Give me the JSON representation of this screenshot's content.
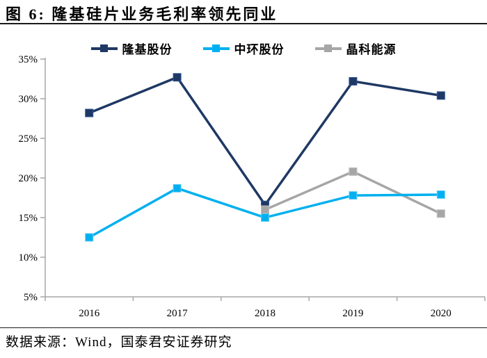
{
  "header": {
    "title": "图 6:  隆基硅片业务毛利率领先同业"
  },
  "footer": {
    "source": "数据来源：Wind，国泰君安证券研究"
  },
  "colors": {
    "axis": "#a6a6a6",
    "text": "#000000",
    "rule": "#1a1a1a"
  },
  "chart_data": {
    "type": "line",
    "title": "隆基硅片业务毛利率领先同业",
    "categories": [
      "2016",
      "2017",
      "2018",
      "2019",
      "2020"
    ],
    "series": [
      {
        "name": "隆基股份",
        "color": "#1f3864",
        "marker_stroke": "#2f5597",
        "values": [
          28.2,
          32.7,
          16.6,
          32.2,
          30.4
        ]
      },
      {
        "name": "中环股份",
        "color": "#00b0f0",
        "marker_stroke": "#66ccf5",
        "values": [
          12.5,
          18.7,
          15.0,
          17.8,
          17.9
        ]
      },
      {
        "name": "晶科能源",
        "color": "#a6a6a6",
        "marker_stroke": "#bfbfbf",
        "values": [
          null,
          null,
          16.0,
          20.8,
          15.5
        ]
      }
    ],
    "draw_order": [
      0,
      2,
      1
    ],
    "marker": "square",
    "grid": false,
    "legend_position": "top",
    "ylim": [
      5,
      35
    ],
    "yticks": [
      "35%",
      "30%",
      "25%",
      "20%",
      "15%",
      "10%",
      "5%"
    ],
    "xlabel": "",
    "ylabel": ""
  }
}
